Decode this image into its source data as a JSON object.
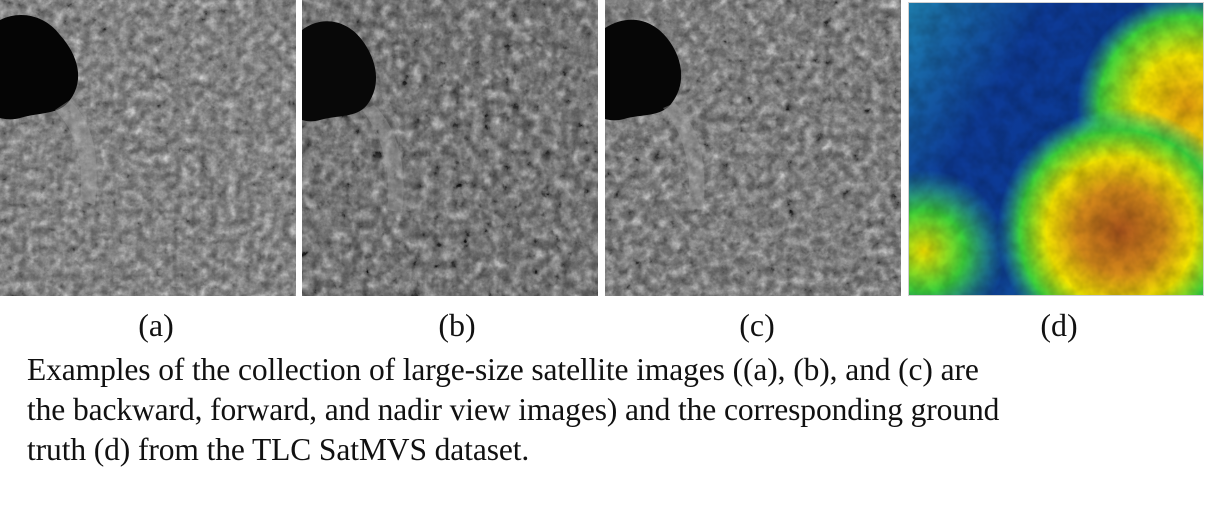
{
  "figure": {
    "panels": [
      {
        "label": "(a)",
        "view": "backward",
        "kind": "grayscale-satellite"
      },
      {
        "label": "(b)",
        "view": "forward",
        "kind": "grayscale-satellite"
      },
      {
        "label": "(c)",
        "view": "nadir",
        "kind": "grayscale-satellite"
      },
      {
        "label": "(d)",
        "view": "ground-truth",
        "kind": "elevation-colormap"
      }
    ],
    "caption_lines": [
      "Examples of the collection of large-size satellite images ((a), (b), and (c) are",
      "the backward, forward, and nadir view images) and the corresponding ground",
      "truth (d) from the TLC SatMVS dataset."
    ],
    "colors": {
      "water": "#050505",
      "terrain_dark": "#2a2a2a",
      "terrain_light": "#9a9a9a",
      "dem_low": "#0a2f8f",
      "dem_mid": "#2fb8a0",
      "dem_green": "#3cd23c",
      "dem_yellow": "#f2e400",
      "dem_high": "#b5601e"
    }
  }
}
